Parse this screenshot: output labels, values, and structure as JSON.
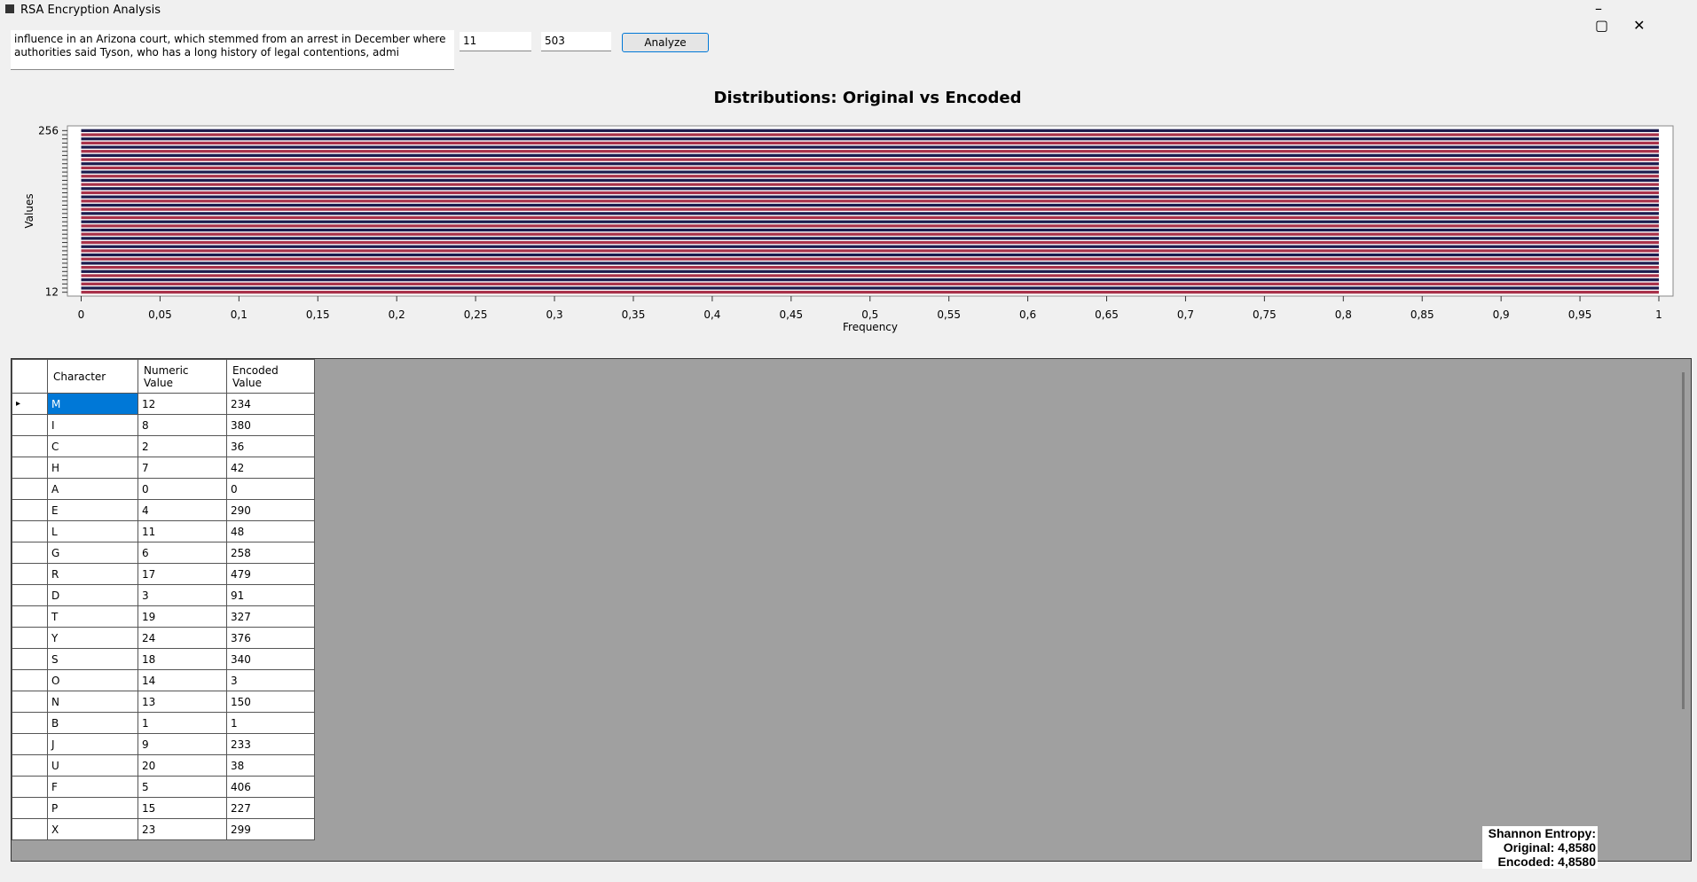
{
  "window": {
    "title": "RSA Encryption Analysis"
  },
  "inputs": {
    "text": "influence in an Arizona court, which stemmed from an arrest in December where authorities said Tyson, who has a long history of legal contentions, admi",
    "e": "11",
    "n": "503",
    "button": "Analyze"
  },
  "chart_data": {
    "type": "barh",
    "title": "Distributions: Original vs Encoded",
    "x_label": "Frequency",
    "y_label": "Values",
    "categories": [
      "256",
      null,
      null,
      null,
      null,
      null,
      null,
      null,
      null,
      null,
      null,
      null,
      null,
      null,
      null,
      null,
      null,
      null,
      null,
      null,
      null,
      null,
      null,
      null,
      null,
      null,
      null,
      null,
      null,
      null,
      null,
      null,
      null,
      null,
      null,
      null,
      null,
      null,
      null,
      "12"
    ],
    "values": [
      1,
      1,
      1,
      1,
      1,
      1,
      1,
      1,
      1,
      1,
      1,
      1,
      1,
      1,
      1,
      1,
      1,
      1,
      1,
      1,
      1,
      1,
      1,
      1,
      1,
      1,
      1,
      1,
      1,
      1,
      1,
      1,
      1,
      1,
      1,
      1,
      1,
      1,
      1,
      1
    ],
    "colors": [
      "#1c1c4e",
      "#a8324a"
    ],
    "xlim": [
      0,
      1
    ],
    "xticks": [
      0,
      {
        "value": 0.05,
        "label": "0,05"
      },
      {
        "value": 0.1,
        "label": "0,1"
      },
      {
        "value": 0.15,
        "label": "0,15"
      },
      {
        "value": 0.2,
        "label": "0,2"
      },
      {
        "value": 0.25,
        "label": "0,25"
      },
      {
        "value": 0.3,
        "label": "0,3"
      },
      {
        "value": 0.35,
        "label": "0,35"
      },
      {
        "value": 0.4,
        "label": "0,4"
      },
      {
        "value": 0.45,
        "label": "0,45"
      },
      {
        "value": 0.5,
        "label": "0,5"
      },
      {
        "value": 0.55,
        "label": "0,55"
      },
      {
        "value": 0.6,
        "label": "0,6"
      },
      {
        "value": 0.65,
        "label": "0,65"
      },
      {
        "value": 0.7,
        "label": "0,7"
      },
      {
        "value": 0.75,
        "label": "0,75"
      },
      {
        "value": 0.8,
        "label": "0,8"
      },
      {
        "value": 0.85,
        "label": "0,85"
      },
      {
        "value": 0.9,
        "label": "0,9"
      },
      {
        "value": 0.95,
        "label": "0,95"
      },
      1
    ]
  },
  "table": {
    "headers": [
      "Character",
      "Numeric Value",
      "Encoded Value"
    ],
    "rows": [
      [
        "M",
        12,
        234
      ],
      [
        "I",
        8,
        380
      ],
      [
        "C",
        2,
        36
      ],
      [
        "H",
        7,
        42
      ],
      [
        "A",
        0,
        0
      ],
      [
        "E",
        4,
        290
      ],
      [
        "L",
        11,
        48
      ],
      [
        "G",
        6,
        258
      ],
      [
        "R",
        17,
        479
      ],
      [
        "D",
        3,
        91
      ],
      [
        "T",
        19,
        327
      ],
      [
        "Y",
        24,
        376
      ],
      [
        "S",
        18,
        340
      ],
      [
        "O",
        14,
        3
      ],
      [
        "N",
        13,
        150
      ],
      [
        "B",
        1,
        1
      ],
      [
        "J",
        9,
        233
      ],
      [
        "U",
        20,
        38
      ],
      [
        "F",
        5,
        406
      ],
      [
        "P",
        15,
        227
      ],
      [
        "X",
        23,
        299
      ]
    ]
  },
  "entropy": {
    "title": "Shannon Entropy:",
    "original": "Original: 4,8580",
    "encoded": "Encoded: 4,8580"
  }
}
